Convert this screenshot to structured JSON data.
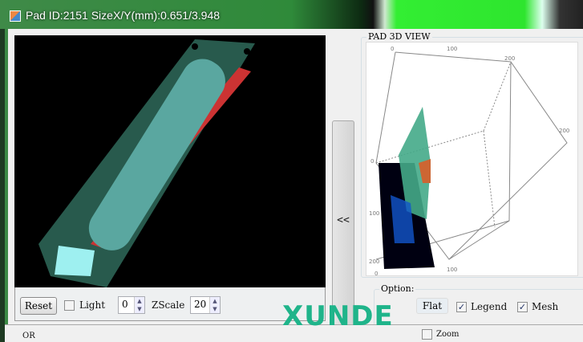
{
  "window": {
    "title": "Pad ID:2151  SizeX/Y(mm):0.651/3.948"
  },
  "controls": {
    "reset_label": "Reset",
    "light_label": "Light",
    "light_checked": false,
    "light_value": "0",
    "zscale_label": "ZScale",
    "zscale_value": "20"
  },
  "collapse": {
    "label": "<<"
  },
  "view3d": {
    "group_title": "PAD 3D VIEW",
    "axis_ticks": [
      "0",
      "100",
      "200",
      "0",
      "100",
      "200",
      "0",
      "100",
      "200"
    ]
  },
  "options": {
    "group_title": "Option:",
    "flat_label": "Flat",
    "legend_label": "Legend",
    "legend_checked": true,
    "mesh_label": "Mesh",
    "mesh_checked": true
  },
  "watermark": "XUNDE",
  "bottom": {
    "left_text": "OR",
    "zoom_label": "Zoom"
  }
}
